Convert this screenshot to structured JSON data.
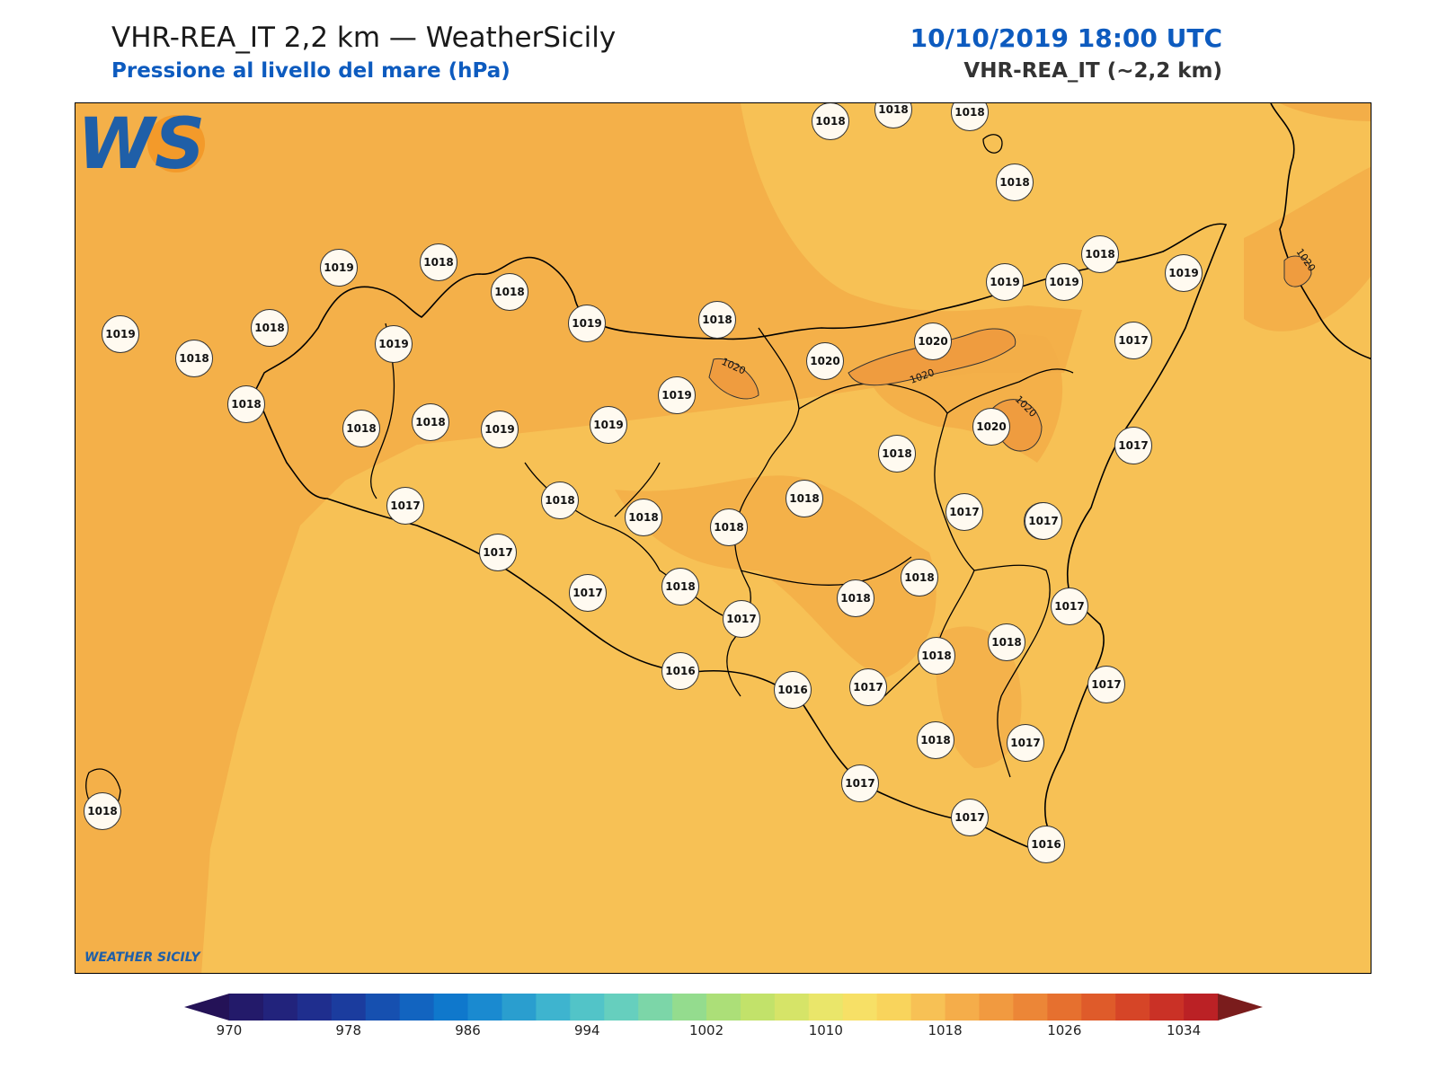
{
  "header": {
    "title": "VHR-REA_IT 2,2 km — WeatherSicily",
    "subtitle": "Pressione al livello del mare (hPa)",
    "datetime": "10/10/2019 18:00 UTC",
    "model": "VHR-REA_IT (~2,2 km)"
  },
  "logo": {
    "text": "WEATHER SICILY",
    "letters": "WS"
  },
  "isobar_label": "1020",
  "stations": [
    {
      "v": "1018"
    },
    {
      "v": "1018"
    },
    {
      "v": "1018"
    },
    {
      "v": "1018"
    },
    {
      "v": "1019"
    },
    {
      "v": "1018"
    },
    {
      "v": "1018"
    },
    {
      "v": "1019"
    },
    {
      "v": "1018"
    },
    {
      "v": "1018"
    },
    {
      "v": "1019"
    },
    {
      "v": "1018"
    },
    {
      "v": "1019"
    },
    {
      "v": "1018"
    },
    {
      "v": "1020"
    },
    {
      "v": "1020"
    },
    {
      "v": "1019"
    },
    {
      "v": "1017"
    },
    {
      "v": "1018"
    },
    {
      "v": "1019"
    },
    {
      "v": "1019"
    },
    {
      "v": "1019"
    },
    {
      "v": "1018"
    },
    {
      "v": "1018"
    },
    {
      "v": "1019"
    },
    {
      "v": "1019"
    },
    {
      "v": "1020"
    },
    {
      "v": "1018"
    },
    {
      "v": "1017"
    },
    {
      "v": "1018"
    },
    {
      "v": "1017"
    },
    {
      "v": "1018"
    },
    {
      "v": "1018"
    },
    {
      "v": "1018"
    },
    {
      "v": "1018"
    },
    {
      "v": "1017"
    },
    {
      "v": "1017"
    },
    {
      "v": "1017"
    },
    {
      "v": "1017"
    },
    {
      "v": "1018"
    },
    {
      "v": "1017"
    },
    {
      "v": "1018"
    },
    {
      "v": "1017"
    },
    {
      "v": "1018"
    },
    {
      "v": "1018"
    },
    {
      "v": "1018"
    },
    {
      "v": "1016"
    },
    {
      "v": "1016"
    },
    {
      "v": "1017"
    },
    {
      "v": "1017"
    },
    {
      "v": "1018"
    },
    {
      "v": "1017"
    },
    {
      "v": "1017"
    },
    {
      "v": "1017"
    },
    {
      "v": "1016"
    },
    {
      "v": "1018"
    }
  ],
  "colorbar": {
    "labels": [
      "970",
      "978",
      "986",
      "994",
      "1002",
      "1010",
      "1018",
      "1026",
      "1034"
    ],
    "colors": [
      "#241257",
      "#231a6a",
      "#22237c",
      "#1f2e8e",
      "#1b3c9e",
      "#1650b0",
      "#1264c0",
      "#0f78cc",
      "#1a8ad0",
      "#2a9ecf",
      "#3eb4cf",
      "#52c4c8",
      "#66cfbe",
      "#7cd6a8",
      "#94dc8e",
      "#acdf78",
      "#c2e26a",
      "#d6e468",
      "#eae66a",
      "#f7e066",
      "#f9d45c",
      "#f7c155",
      "#f5ad4a",
      "#f19a40",
      "#ec8637",
      "#e6702f",
      "#df5b2a",
      "#d64527",
      "#ca3126",
      "#bb2125",
      "#7a1c1c"
    ]
  }
}
